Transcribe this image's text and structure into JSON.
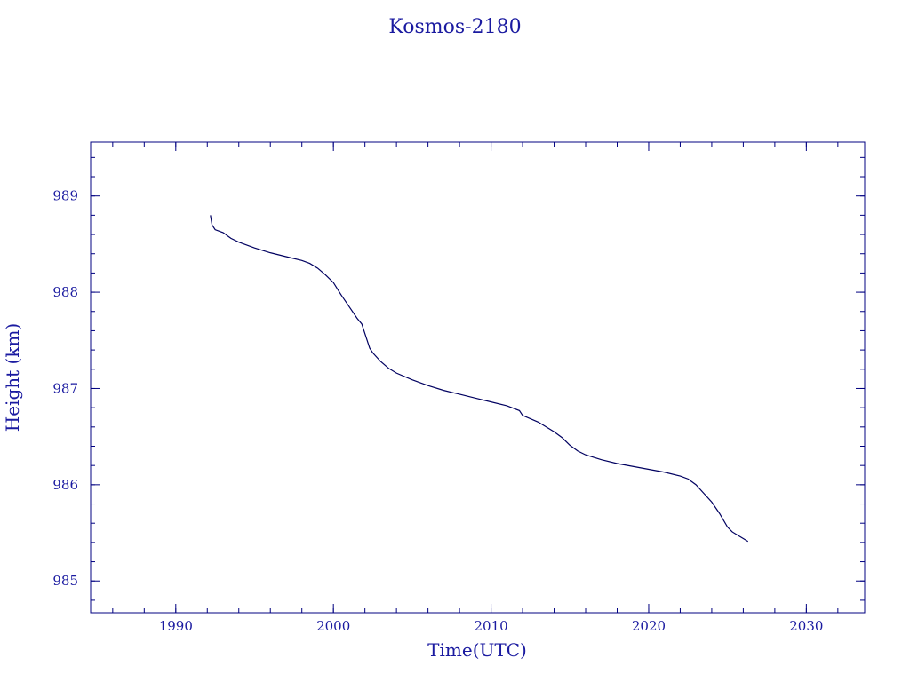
{
  "chart_data": {
    "type": "line",
    "title": "Kosmos-2180",
    "xlabel": "Time(UTC)",
    "ylabel": "Height (km)",
    "xlim": [
      1984.6,
      2033.7
    ],
    "ylim": [
      984.67,
      989.56
    ],
    "x_ticks": [
      1990,
      2000,
      2010,
      2020,
      2030
    ],
    "y_ticks": [
      985,
      986,
      987,
      988,
      989
    ],
    "x_minor_step": 2,
    "y_minor_step": 0.2,
    "grid": false,
    "colors": {
      "axis": "#000080",
      "line": "#000060",
      "text": "#1a1aa0"
    },
    "series": [
      {
        "x": [
          1992.2,
          1992.3,
          1992.5,
          1993.0,
          1993.5,
          1994.0,
          1995.0,
          1996.0,
          1997.0,
          1998.0,
          1998.5,
          1999.0,
          1999.5,
          2000.0,
          2000.5,
          2001.0,
          2001.5,
          2001.8,
          2002.0,
          2002.3,
          2002.5,
          2003.0,
          2003.5,
          2004.0,
          2005.0,
          2006.0,
          2007.0,
          2008.0,
          2009.0,
          2010.0,
          2011.0,
          2011.8,
          2012.0,
          2013.0,
          2014.0,
          2014.5,
          2015.0,
          2015.5,
          2016.0,
          2017.0,
          2018.0,
          2019.0,
          2020.0,
          2021.0,
          2022.0,
          2022.5,
          2023.0,
          2023.5,
          2024.0,
          2024.5,
          2025.0,
          2025.3,
          2025.6,
          2026.0,
          2026.3
        ],
        "y": [
          988.8,
          988.7,
          988.65,
          988.62,
          988.56,
          988.52,
          988.46,
          988.41,
          988.37,
          988.33,
          988.3,
          988.25,
          988.18,
          988.1,
          987.97,
          987.85,
          987.73,
          987.67,
          987.57,
          987.42,
          987.37,
          987.28,
          987.21,
          987.16,
          987.09,
          987.03,
          986.98,
          986.94,
          986.9,
          986.86,
          986.82,
          986.77,
          986.72,
          986.65,
          986.55,
          986.49,
          986.41,
          986.35,
          986.31,
          986.26,
          986.22,
          986.19,
          986.16,
          986.13,
          986.09,
          986.06,
          986.0,
          985.91,
          985.82,
          985.7,
          985.56,
          985.51,
          985.48,
          985.44,
          985.41
        ]
      }
    ]
  }
}
